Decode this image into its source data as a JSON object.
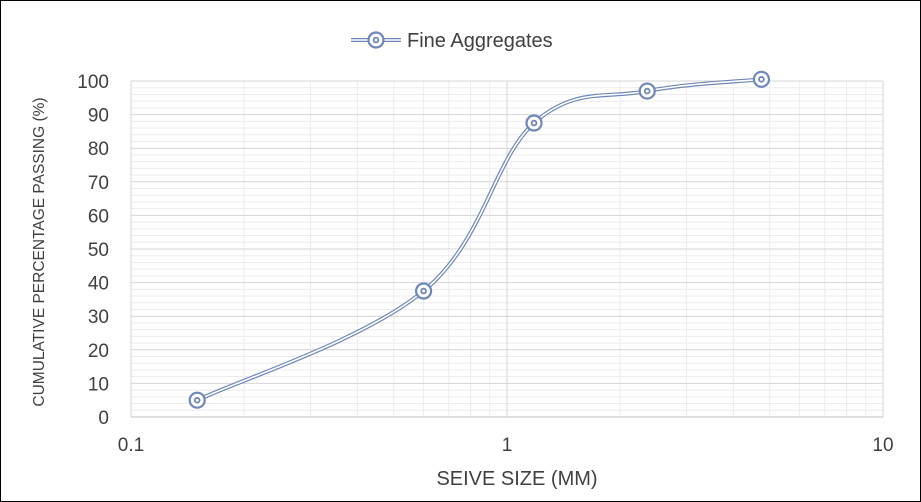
{
  "chart_data": {
    "type": "line",
    "title": "",
    "xlabel": "SEIVE SIZE (MM)",
    "ylabel": "CUMULATIVE PERCENTAGE PASSING (%)",
    "x_scale": "log",
    "xlim": [
      0.1,
      10
    ],
    "ylim": [
      0,
      100
    ],
    "x_ticks": [
      0.1,
      1,
      10
    ],
    "x_tick_labels": [
      "0.1",
      "1",
      "10"
    ],
    "y_ticks": [
      0,
      10,
      20,
      30,
      40,
      50,
      60,
      70,
      80,
      90,
      100
    ],
    "y_tick_labels": [
      "0",
      "10",
      "20",
      "30",
      "40",
      "50",
      "60",
      "70",
      "80",
      "90",
      "100"
    ],
    "grid": true,
    "smooth": true,
    "legend_position": "top",
    "series": [
      {
        "name": "Fine Aggregates",
        "color": "#6f86b8",
        "marker": "double-circle",
        "x": [
          0.15,
          0.6,
          1.18,
          2.36,
          4.75
        ],
        "y": [
          5,
          37.5,
          87.5,
          97,
          100.5
        ]
      }
    ]
  }
}
